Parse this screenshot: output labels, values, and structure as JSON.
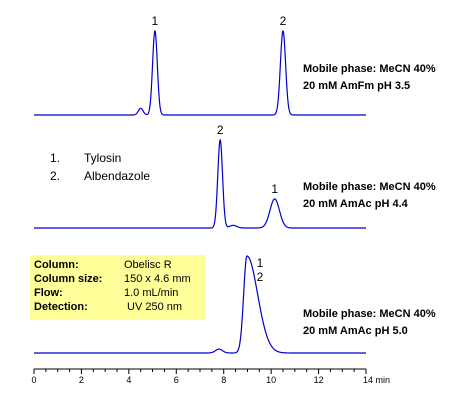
{
  "chart_data": {
    "type": "line",
    "x_unit": "min",
    "xlim": [
      0,
      14
    ],
    "x_ticks": [
      "0",
      "2",
      "4",
      "6",
      "8",
      "10",
      "12",
      "14 min"
    ],
    "compounds": [
      {
        "number": "1.",
        "name": "Tylosin"
      },
      {
        "number": "2.",
        "name": "Albendazole"
      }
    ],
    "column_info": [
      {
        "key": "Column:",
        "value": "Obelisc R"
      },
      {
        "key": "Column size:",
        "value": "150 x 4.6 mm"
      },
      {
        "key": "Flow:",
        "value": "1.0 mL/min"
      },
      {
        "key": "Detection:",
        "value": "UV 250 nm"
      }
    ],
    "series": [
      {
        "mobile_phase": [
          "Mobile phase: MeCN  40%",
          "20 mM AmFm pH 3.5"
        ],
        "peaks": [
          {
            "label": "1",
            "rt": 5.1,
            "height": 1.0,
            "width": 0.1
          },
          {
            "label": "2",
            "rt": 10.5,
            "height": 1.0,
            "width": 0.11
          }
        ],
        "minor_peaks": [
          {
            "rt": 4.5,
            "height": 0.08,
            "width": 0.1
          }
        ]
      },
      {
        "mobile_phase": [
          "Mobile phase: MeCN  40%",
          "20 mM AmAc pH 4.4"
        ],
        "peaks": [
          {
            "label": "2",
            "rt": 7.85,
            "height": 1.0,
            "width": 0.1
          },
          {
            "label": "1",
            "rt": 10.15,
            "height": 0.33,
            "width": 0.2
          }
        ],
        "minor_peaks": [
          {
            "rt": 8.4,
            "height": 0.03,
            "width": 0.15
          }
        ]
      },
      {
        "mobile_phase": [
          "Mobile phase: MeCN  40%",
          "20 mM AmAc pH 5.0"
        ],
        "peaks": [
          {
            "label": "1\n2",
            "rt": 8.98,
            "height": 1.0,
            "width": 0.14,
            "tail": 0.45
          }
        ],
        "minor_peaks": [
          {
            "rt": 7.8,
            "height": 0.04,
            "width": 0.15
          }
        ]
      }
    ]
  },
  "colors": {
    "trace": "#0000cc",
    "info_box": "#ffff99",
    "axis": "#000000"
  }
}
